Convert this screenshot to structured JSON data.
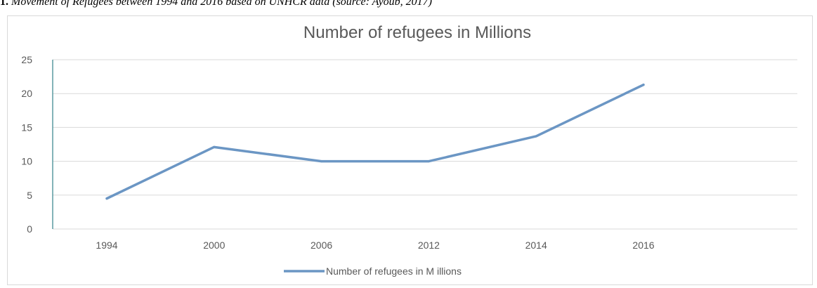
{
  "caption": {
    "prefix": "1.",
    "text": " Movement of Refugees between 1994 and 2016 based on UNHCR data (source: Ayoub, 2017)"
  },
  "colors": {
    "series": "#6b96c4",
    "grid": "#d9d9d9",
    "axis": "#5a9aa0",
    "text": "#595959"
  },
  "chart_data": {
    "type": "line",
    "title": "Number of refugees in Millions",
    "categories": [
      "1994",
      "2000",
      "2006",
      "2012",
      "2014",
      "2016"
    ],
    "series": [
      {
        "name": "Number of refugees in M illions",
        "values": [
          4.5,
          12.1,
          10.0,
          10.0,
          13.7,
          21.3
        ]
      }
    ],
    "ylim": [
      0,
      25
    ],
    "yticks": [
      0,
      5,
      10,
      15,
      20,
      25
    ],
    "grid": true,
    "legend": "bottom"
  }
}
